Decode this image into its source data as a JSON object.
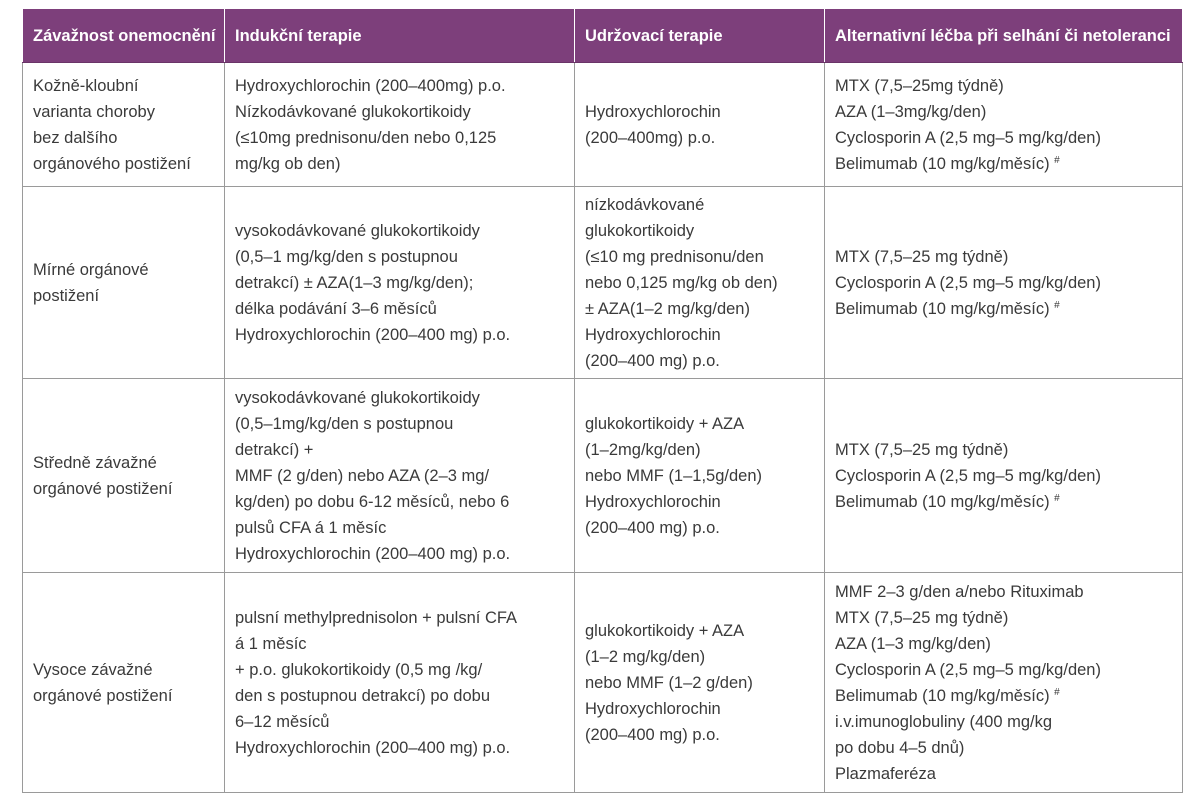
{
  "header": {
    "col1": "Závažnost onemocnění",
    "col2": "Indukční terapie",
    "col3": "Udržovací terapie",
    "col4": "Alternativní léčba při selhání či netoleranci"
  },
  "rows": [
    {
      "severity": [
        "Kožně-kloubní",
        "varianta choroby",
        "bez dalšího",
        "orgánového postižení"
      ],
      "induction": [
        "Hydroxychlorochin (200–400mg) p.o.",
        "Nízkodávkované glukokortikoidy",
        "(≤10mg prednisonu/den nebo 0,125",
        "mg/kg ob den)"
      ],
      "maintenance": [
        "Hydroxychlorochin",
        "(200–400mg) p.o."
      ],
      "alternative": [
        "MTX (7,5–25mg týdně)",
        "AZA (1–3mg/kg/den)",
        "Cyclosporin A (2,5 mg–5 mg/kg/den)",
        "Belimumab (10 mg/kg/měsíc)"
      ]
    },
    {
      "severity": [
        "Mírné orgánové",
        "postižení"
      ],
      "induction": [
        "vysokodávkované glukokortikoidy",
        "(0,5–1 mg/kg/den s postupnou",
        "detrakcí) ± AZA(1–3 mg/kg/den);",
        "délka podávání 3–6 měsíců",
        "Hydroxychlorochin (200–400 mg) p.o."
      ],
      "maintenance": [
        "nízkodávkované",
        "glukokortikoidy",
        "(≤10 mg prednisonu/den",
        "nebo 0,125 mg/kg ob den)",
        "± AZA(1–2 mg/kg/den)",
        "Hydroxychlorochin",
        "(200–400 mg) p.o."
      ],
      "alternative": [
        "MTX (7,5–25 mg týdně)",
        "Cyclosporin A (2,5 mg–5 mg/kg/den)",
        "Belimumab (10 mg/kg/měsíc)"
      ]
    },
    {
      "severity": [
        "Středně závažné",
        "orgánové postižení"
      ],
      "induction": [
        "vysokodávkované glukokortikoidy",
        "(0,5–1mg/kg/den s postupnou",
        "detrakcí) +",
        "MMF (2 g/den) nebo AZA (2–3 mg/",
        "kg/den) po dobu 6-12 měsíců, nebo 6",
        "pulsů CFA á 1 měsíc",
        "Hydroxychlorochin (200–400 mg) p.o."
      ],
      "maintenance": [
        "glukokortikoidy + AZA",
        "(1–2mg/kg/den)",
        "nebo MMF (1–1,5g/den)",
        "Hydroxychlorochin",
        "(200–400 mg) p.o."
      ],
      "alternative": [
        "MTX (7,5–25 mg týdně)",
        "Cyclosporin A (2,5 mg–5 mg/kg/den)",
        "Belimumab (10 mg/kg/měsíc)"
      ]
    },
    {
      "severity": [
        "Vysoce závažné",
        "orgánové postižení"
      ],
      "induction": [
        "pulsní methylprednisolon + pulsní CFA",
        "á 1 měsíc",
        "+ p.o. glukokortikoidy (0,5 mg /kg/",
        "den s postupnou detrakcí) po dobu",
        "6–12 měsíců",
        "Hydroxychlorochin (200–400 mg) p.o."
      ],
      "maintenance": [
        "glukokortikoidy + AZA",
        "(1–2 mg/kg/den)",
        "nebo MMF (1–2 g/den)",
        "Hydroxychlorochin",
        "(200–400 mg) p.o."
      ],
      "alternative": [
        "MMF 2–3 g/den a/nebo Rituximab",
        "MTX (7,5–25 mg týdně)",
        "AZA (1–3 mg/kg/den)",
        "Cyclosporin A (2,5 mg–5 mg/kg/den)",
        "Belimumab (10 mg/kg/měsíc)",
        "i.v.imunoglobuliny (400 mg/kg",
        "po dobu 4–5 dnů)",
        "Plazmaferéza"
      ]
    }
  ],
  "footnote_mark": "#",
  "colors": {
    "header_bg": "#7d3f7b",
    "header_text": "#ffffff",
    "body_text": "#3a3a3a",
    "border": "#9a9a9a"
  }
}
